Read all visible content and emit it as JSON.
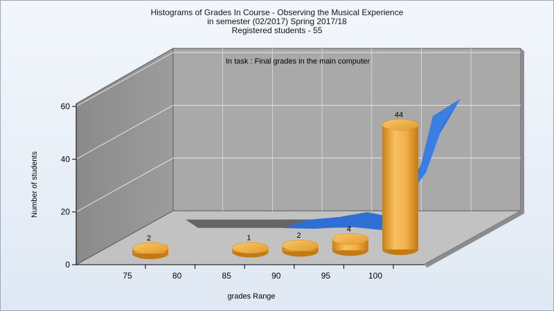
{
  "chart_data": {
    "type": "bar",
    "title_lines": [
      "Histograms of Grades  In Course - Observing the Musical Experience",
      "in semester  (02/2017) Spring 2017/18",
      "Registered students - 55"
    ],
    "annotation": "In task : Final grades in the main computer",
    "xlabel": "grades Range",
    "ylabel": "Number of students",
    "x_ticks": [
      "75",
      "80",
      "85",
      "90",
      "95",
      "100"
    ],
    "y_ticks": [
      0,
      20,
      40,
      60
    ],
    "ylim": [
      0,
      60
    ],
    "grid": true,
    "style": "3d",
    "bars": [
      {
        "slot": 0,
        "value": 2,
        "label": "2"
      },
      {
        "slot": 2,
        "value": 1,
        "label": "1"
      },
      {
        "slot": 3,
        "value": 2,
        "label": "2"
      },
      {
        "slot": 4,
        "value": 4,
        "label": "4"
      },
      {
        "slot": 5,
        "value": 44,
        "label": "44"
      }
    ],
    "background_series": [
      {
        "values": [
          1,
          1,
          1,
          2,
          4,
          44
        ],
        "color": "#606060"
      },
      {
        "values": [
          1,
          1,
          1,
          2,
          4,
          44
        ],
        "color": "#2e6fd6"
      }
    ],
    "bar_color": "#f0a838",
    "wall_color": "#a9a9a9"
  }
}
